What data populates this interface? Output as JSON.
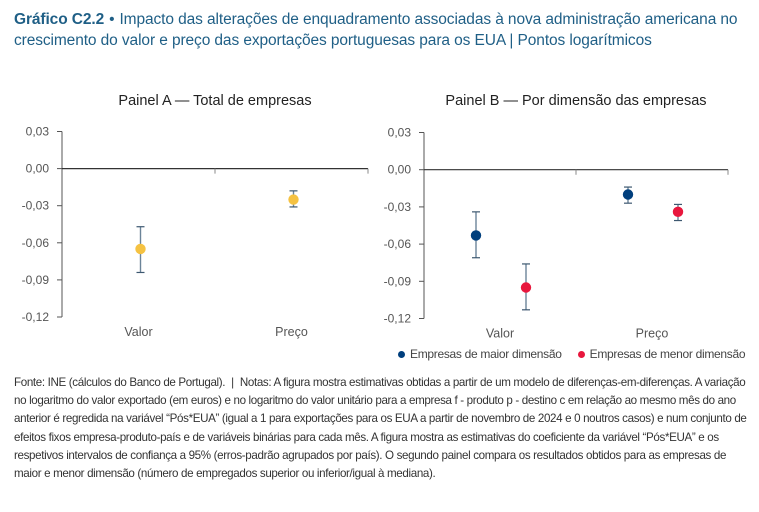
{
  "header": {
    "label": "Gráfico C2.2",
    "bullet": "•",
    "title": "Impacto das alterações de enquadramento associadas à nova administração americana no crescimento do valor e preço das exportações portuguesas para os EUA | Pontos logarítmicos"
  },
  "colors": {
    "title": "#1f5f86",
    "total": "#f5c242",
    "maior": "#003f7d",
    "menor": "#e8173d",
    "errorbar": "#6b8499",
    "axis": "#555555"
  },
  "chart_data": [
    {
      "type": "scatter",
      "title": "Painel A — Total de empresas",
      "categories": [
        "Valor",
        "Preço"
      ],
      "ylim": [
        -0.12,
        0.03
      ],
      "yticks": [
        "0,03",
        "0,00",
        "-0,03",
        "-0,06",
        "-0,09",
        "-0,12"
      ],
      "ytick_values": [
        0.03,
        0.0,
        -0.03,
        -0.06,
        -0.09,
        -0.12
      ],
      "grid": false,
      "series": [
        {
          "name": "Total de empresas",
          "color_key": "total",
          "values": [
            -0.065,
            -0.025
          ],
          "ci_low": [
            -0.084,
            -0.031
          ],
          "ci_high": [
            -0.047,
            -0.018
          ]
        }
      ]
    },
    {
      "type": "scatter",
      "title": "Painel B — Por dimensão das empresas",
      "categories": [
        "Valor",
        "Preço"
      ],
      "ylim": [
        -0.12,
        0.03
      ],
      "yticks": [
        "0,03",
        "0,00",
        "-0,03",
        "-0,06",
        "-0,09",
        "-0,12"
      ],
      "ytick_values": [
        0.03,
        0.0,
        -0.03,
        -0.06,
        -0.09,
        -0.12
      ],
      "grid": false,
      "legend_position": "bottom",
      "series": [
        {
          "name": "Empresas de maior dimensão",
          "color_key": "maior",
          "values": [
            -0.053,
            -0.02
          ],
          "ci_low": [
            -0.071,
            -0.027
          ],
          "ci_high": [
            -0.034,
            -0.014
          ]
        },
        {
          "name": "Empresas de menor dimensão",
          "color_key": "menor",
          "values": [
            -0.095,
            -0.034
          ],
          "ci_low": [
            -0.113,
            -0.041
          ],
          "ci_high": [
            -0.076,
            -0.028
          ]
        }
      ]
    }
  ],
  "footnote": {
    "source": "Fonte: INE (cálculos do Banco de Portugal).",
    "separator": "|",
    "notes": "Notas: A figura mostra estimativas obtidas a partir de um modelo de diferenças-em-diferenças. A variação no logaritmo do valor exportado (em euros) e no logaritmo do valor unitário para a empresa f - produto p - destino c em relação ao mesmo mês do ano anterior é regredida na variável “Pós*EUA” (igual a 1 para exportações para os EUA a partir de novembro de 2024 e 0 noutros casos) e num conjunto de efeitos fixos empresa-produto-país e de variáveis binárias para cada mês. A figura mostra as estimativas do coeficiente da variável “Pós*EUA” e os respetivos intervalos de confiança a 95% (erros-padrão agrupados por país). O segundo painel compara os resultados obtidos para as empresas de maior e menor dimensão (número de empregados superior ou inferior/igual à mediana)."
  }
}
